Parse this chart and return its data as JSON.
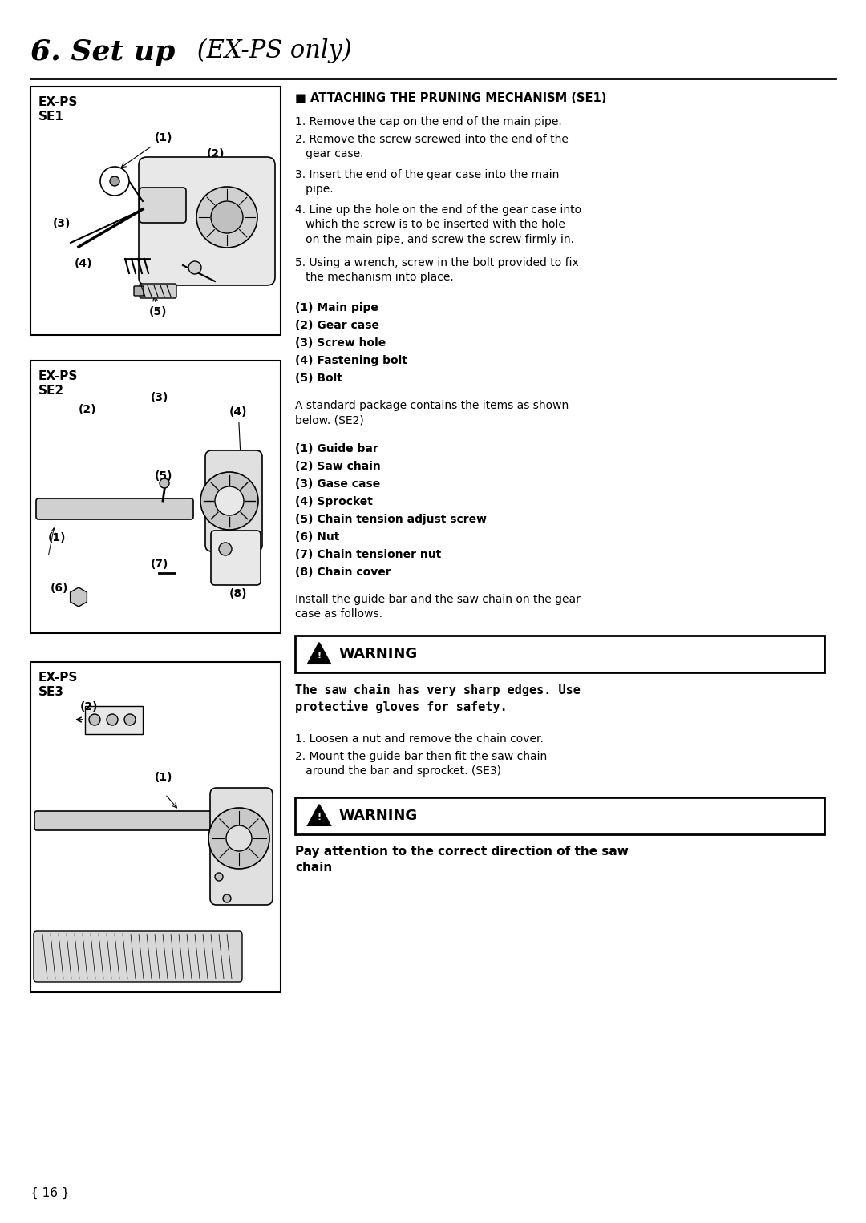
{
  "page_bg": "#ffffff",
  "title_bold": "6. Set up",
  "title_italic": " (EX-PS only)",
  "section1_heading": "■ ATTACHING THE PRUNING MECHANISM (SE1)",
  "section1_steps": [
    "1. Remove the cap on the end of the main pipe.",
    "2. Remove the screw screwed into the end of the\n   gear case.",
    "3. Insert the end of the gear case into the main\n   pipe.",
    "4. Line up the hole on the end of the gear case into\n   which the screw is to be inserted with the hole\n   on the main pipe, and screw the screw firmly in.",
    "5. Using a wrench, screw in the bolt provided to fix\n   the mechanism into place."
  ],
  "section1_parts": [
    "(1) Main pipe",
    "(2) Gear case",
    "(3) Screw hole",
    "(4) Fastening bolt",
    "(5) Bolt"
  ],
  "section2_intro": "A standard package contains the items as shown\nbelow. (SE2)",
  "section2_parts": [
    "(1) Guide bar",
    "(2) Saw chain",
    "(3) Gase case",
    "(4) Sprocket",
    "(5) Chain tension adjust screw",
    "(6) Nut",
    "(7) Chain tensioner nut",
    "(8) Chain cover"
  ],
  "section3_intro": "Install the guide bar and the saw chain on the gear\ncase as follows.",
  "warning1_text": "The saw chain has very sharp edges. Use\nprotective gloves for safety.",
  "section3_steps": [
    "1. Loosen a nut and remove the chain cover.",
    "2. Mount the guide bar then fit the saw chain\n   around the bar and sprocket. (SE3)"
  ],
  "warning2_text": "Pay attention to the correct direction of the saw\nchain",
  "page_number": "{ 16 }"
}
